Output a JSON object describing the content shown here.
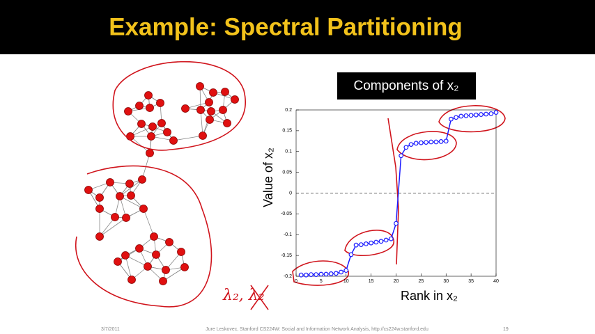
{
  "header": {
    "title": "Example: Spectral Partitioning"
  },
  "footer": {
    "date": "3/7/2011",
    "credit": "Jure Leskovec, Stanford CS224W: Social and Information Network Analysis, http://cs224w.stanford.edu",
    "page": "19"
  },
  "handwriting": "λ₂, λ₂",
  "chart_data": {
    "type": "line",
    "title": "Components of x₂",
    "x_label": "Rank in x₂",
    "y_label": "Value of x₂",
    "x": [
      1,
      2,
      3,
      4,
      5,
      6,
      7,
      8,
      9,
      10,
      11,
      12,
      13,
      14,
      15,
      16,
      17,
      18,
      19,
      20,
      21,
      22,
      23,
      24,
      25,
      26,
      27,
      28,
      29,
      30,
      31,
      32,
      33,
      34,
      35,
      36,
      37,
      38,
      39,
      40
    ],
    "series": [
      {
        "name": "x₂",
        "color": "#1a1aff",
        "values": [
          -0.197,
          -0.197,
          -0.196,
          -0.196,
          -0.195,
          -0.195,
          -0.194,
          -0.193,
          -0.19,
          -0.186,
          -0.148,
          -0.125,
          -0.124,
          -0.122,
          -0.12,
          -0.118,
          -0.116,
          -0.113,
          -0.11,
          -0.073,
          0.09,
          0.11,
          0.117,
          0.12,
          0.121,
          0.122,
          0.123,
          0.123,
          0.124,
          0.125,
          0.178,
          0.182,
          0.185,
          0.186,
          0.187,
          0.188,
          0.189,
          0.19,
          0.191,
          0.194
        ]
      }
    ],
    "xlim": [
      0,
      40
    ],
    "xticks": [
      0,
      5,
      10,
      15,
      20,
      25,
      30,
      35,
      40
    ],
    "ylim": [
      -0.2,
      0.2
    ],
    "yticks": [
      -0.2,
      -0.15,
      -0.1,
      -0.05,
      0,
      0.05,
      0.1,
      0.15,
      0.2
    ],
    "hline": 0
  }
}
